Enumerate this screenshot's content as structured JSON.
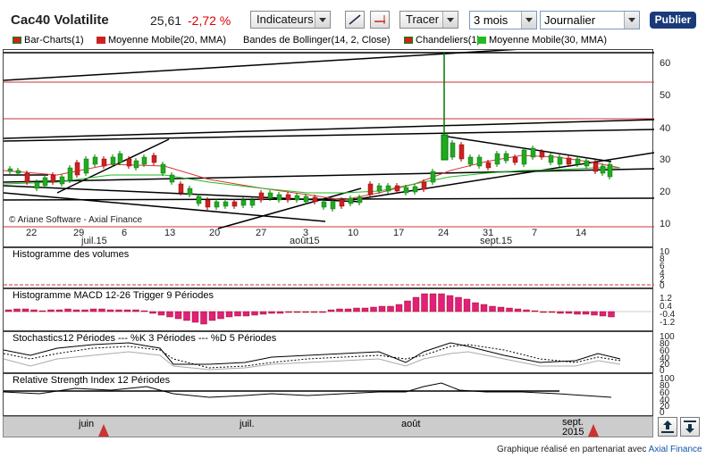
{
  "header": {
    "title": "Cac40 Volatilite",
    "price": "25,61",
    "change": "-2,72 %",
    "indicators_label": "Indicateurs",
    "draw_label": "Tracer",
    "period_value": "3 mois",
    "interval_value": "Journalier",
    "publish_label": "Publier"
  },
  "legend": [
    {
      "label": "Bar-Charts(1)",
      "color": "#cc2222"
    },
    {
      "label": "Moyenne Mobile(20, MMA)",
      "color": "#cc2222"
    },
    {
      "label": "Bandes de Bollinger(14, 2, Close)",
      "color": ""
    },
    {
      "label": "Chandeliers(1)",
      "color": "#cc2222"
    },
    {
      "label": "Moyenne Mobile(30, MMA)",
      "color": "#22bb22"
    }
  ],
  "main_chart": {
    "copyright": "© Ariane Software - Axial Finance",
    "y_ticks": [
      "60",
      "50",
      "40",
      "30",
      "20",
      "10"
    ],
    "x_day_ticks": [
      "22",
      "29",
      "6",
      "13",
      "20",
      "27",
      "3",
      "10",
      "17",
      "24",
      "31",
      "7",
      "14"
    ],
    "x_month_labels": [
      "juil.15",
      "août15",
      "sept.15"
    ]
  },
  "volume_panel": {
    "title": "Histogramme des volumes",
    "y_ticks": [
      "10",
      "8",
      "6",
      "4",
      "2",
      "0"
    ]
  },
  "macd_panel": {
    "title": "Histogramme MACD 12-26   Trigger 9 Périodes",
    "y_ticks": [
      "1.2",
      "0.4",
      "-0.4",
      "-1.2"
    ]
  },
  "stoch_panel": {
    "title": "Stochastics12 Périodes  ---  %K 3 Périodes  ---  %D 5 Périodes",
    "y_ticks": [
      "100",
      "80",
      "60",
      "40",
      "20",
      "0"
    ]
  },
  "rsi_panel": {
    "title": "Relative Strength Index 12 Périodes",
    "y_ticks": [
      "100",
      "80",
      "60",
      "40",
      "20",
      "0"
    ]
  },
  "navigator": {
    "months": [
      "juin",
      "juil.",
      "août",
      "sept.",
      "2015"
    ]
  },
  "footer": {
    "text": "Graphique réalisé en partenariat avec ",
    "link": "Axial Finance"
  }
}
